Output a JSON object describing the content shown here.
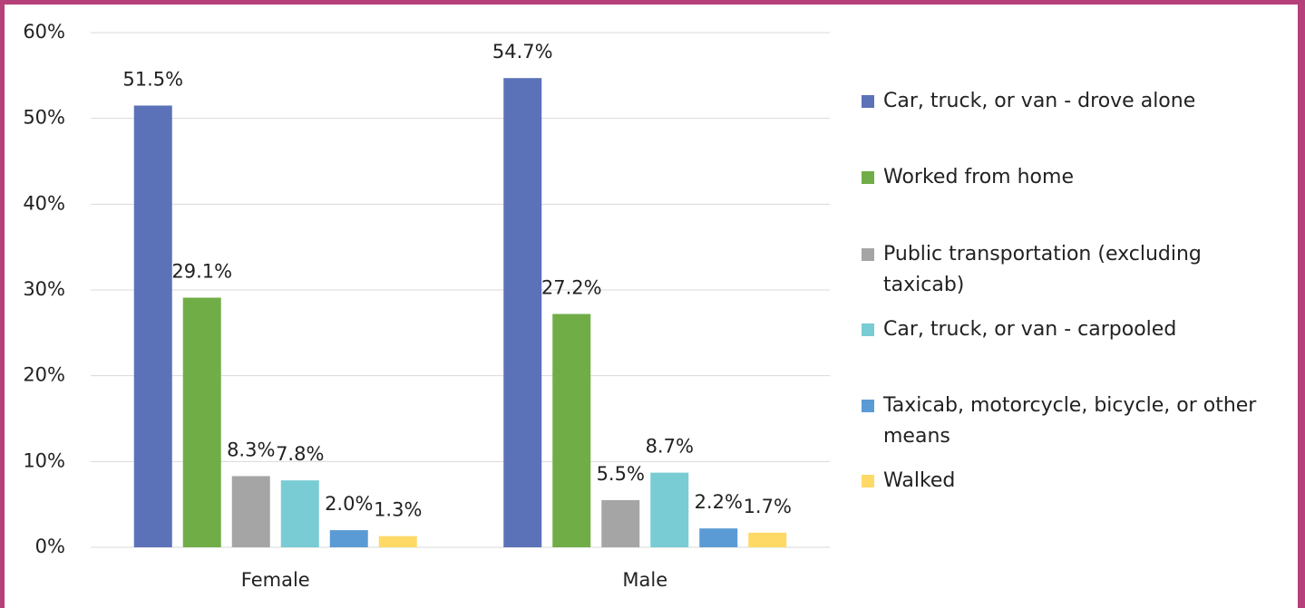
{
  "chart_data": {
    "type": "bar",
    "categories": [
      "Female",
      "Male"
    ],
    "series": [
      {
        "name": "Car, truck, or van - drove alone",
        "color": "#5b72b9",
        "values": [
          51.5,
          54.7
        ],
        "value_labels": [
          "51.5%",
          "54.7%"
        ]
      },
      {
        "name": "Worked from home",
        "color": "#70ad47",
        "values": [
          29.1,
          27.2
        ],
        "value_labels": [
          "29.1%",
          "27.2%"
        ]
      },
      {
        "name": "Public transportation (excluding taxicab)",
        "color": "#a5a5a5",
        "values": [
          8.3,
          5.5
        ],
        "value_labels": [
          "8.3%",
          "5.5%"
        ]
      },
      {
        "name": "Car, truck, or van - carpooled",
        "color": "#79ccd3",
        "values": [
          7.8,
          8.7
        ],
        "value_labels": [
          "7.8%",
          "8.7%"
        ]
      },
      {
        "name": "Taxicab, motorcycle, bicycle, or other means",
        "color": "#5b9bd5",
        "values": [
          2.0,
          2.2
        ],
        "value_labels": [
          "2.0%",
          "2.2%"
        ]
      },
      {
        "name": "Walked",
        "color": "#ffd966",
        "values": [
          1.3,
          1.7
        ],
        "value_labels": [
          "1.3%",
          "1.7%"
        ]
      }
    ],
    "ylim": [
      0,
      60
    ],
    "yticks": [
      {
        "value": 0,
        "label": "0%"
      },
      {
        "value": 10,
        "label": "10%"
      },
      {
        "value": 20,
        "label": "20%"
      },
      {
        "value": 30,
        "label": "30%"
      },
      {
        "value": 40,
        "label": "40%"
      },
      {
        "value": 50,
        "label": "50%"
      },
      {
        "value": 60,
        "label": "60%"
      }
    ],
    "grid": true,
    "legend": "right"
  }
}
